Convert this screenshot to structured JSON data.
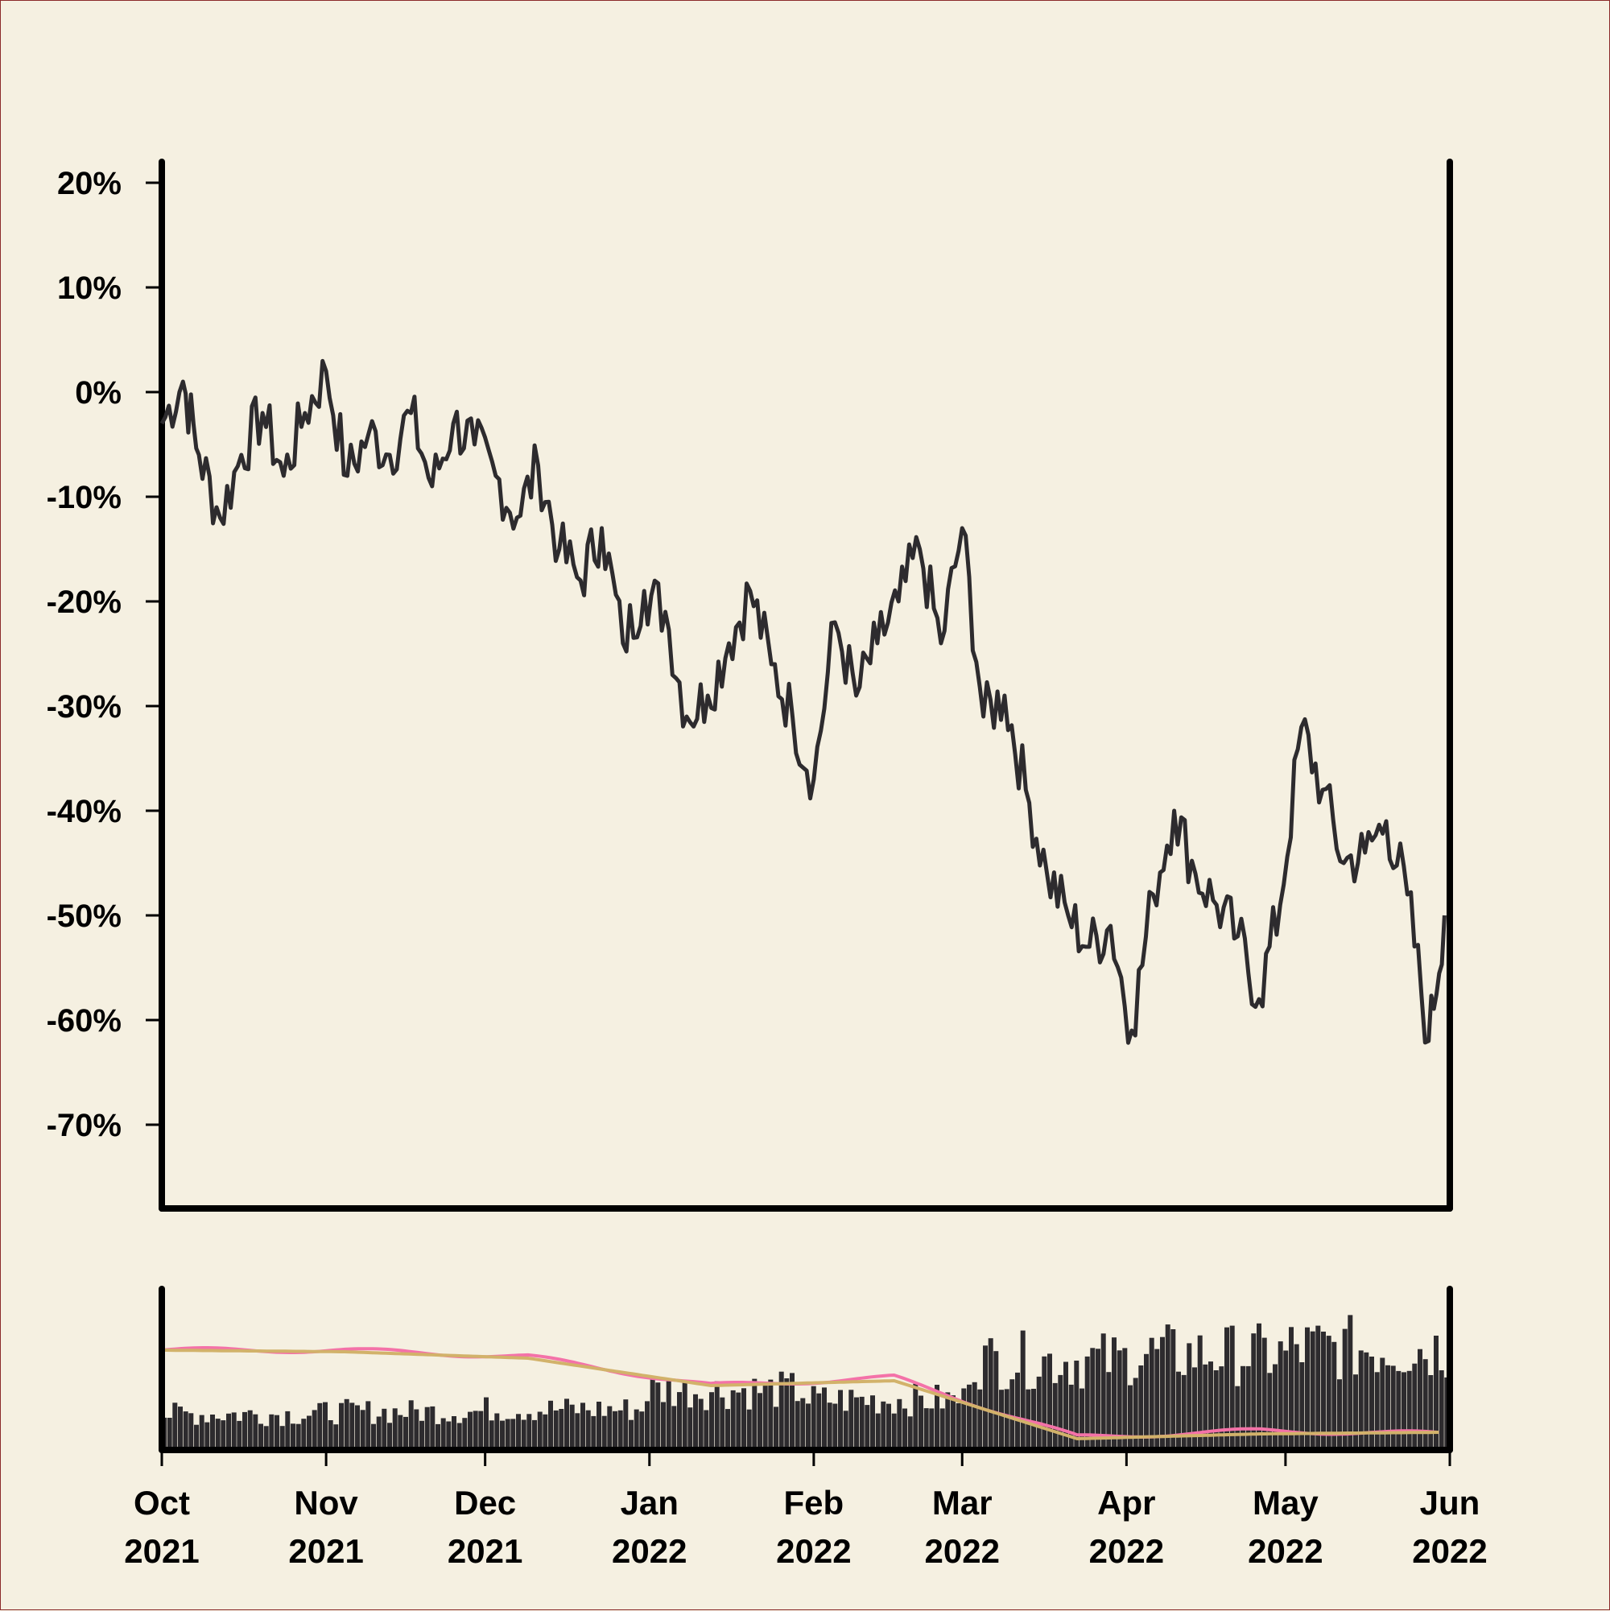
{
  "chart_data": [
    {
      "type": "line",
      "series": [
        {
          "color": "#2d2b2e",
          "x": [
            "2021-10-01",
            "2021-10-05",
            "2021-10-08",
            "2021-10-12",
            "2021-10-16",
            "2021-10-20",
            "2021-10-24",
            "2021-10-28",
            "2021-11-01",
            "2021-11-05",
            "2021-11-09",
            "2021-11-13",
            "2021-11-17",
            "2021-11-21",
            "2021-11-25",
            "2021-11-29",
            "2021-12-03",
            "2021-12-07",
            "2021-12-11",
            "2021-12-15",
            "2021-12-19",
            "2021-12-23",
            "2021-12-27",
            "2021-12-31",
            "2022-01-04",
            "2022-01-08",
            "2022-01-12",
            "2022-01-16",
            "2022-01-20",
            "2022-01-24",
            "2022-01-28",
            "2022-02-01",
            "2022-02-05",
            "2022-02-09",
            "2022-02-13",
            "2022-02-17",
            "2022-02-21",
            "2022-02-25",
            "2022-03-01",
            "2022-03-05",
            "2022-03-09",
            "2022-03-13",
            "2022-03-17",
            "2022-03-21",
            "2022-03-25",
            "2022-03-29",
            "2022-04-02",
            "2022-04-06",
            "2022-04-10",
            "2022-04-14",
            "2022-04-18",
            "2022-04-22",
            "2022-04-26",
            "2022-04-30",
            "2022-05-04",
            "2022-05-08",
            "2022-05-12",
            "2022-05-16",
            "2022-05-20",
            "2022-05-24",
            "2022-05-28",
            "2022-05-31"
          ],
          "y": [
            -3,
            1,
            -6,
            -12,
            -6,
            -2,
            -8,
            -2,
            2,
            -8,
            -4,
            -6,
            -2,
            -9,
            -3,
            -5,
            -8,
            -12,
            -7,
            -15,
            -18,
            -13,
            -24,
            -19,
            -21,
            -31,
            -29,
            -24,
            -19,
            -26,
            -31,
            -37,
            -22,
            -29,
            -24,
            -20,
            -15,
            -24,
            -13,
            -31,
            -29,
            -38,
            -46,
            -50,
            -53,
            -51,
            -61,
            -48,
            -40,
            -46,
            -49,
            -52,
            -58,
            -49,
            -32,
            -38,
            -45,
            -44,
            -41,
            -48,
            -62,
            -50
          ]
        }
      ],
      "xlim": [
        "2021-10-01",
        "2022-06-01"
      ],
      "ylim": [
        -78,
        22
      ],
      "yticks": [
        "20%",
        "10%",
        "0%",
        "-10%",
        "-20%",
        "-30%",
        "-40%",
        "-50%",
        "-60%",
        "-70%"
      ],
      "ytick_values": [
        20,
        10,
        0,
        -10,
        -20,
        -30,
        -40,
        -50,
        -60,
        -70
      ],
      "grid": false
    },
    {
      "type": "bar",
      "x": [
        "2021-10",
        "2021-11",
        "2021-12",
        "2022-01",
        "2022-02",
        "2022-03",
        "2022-04",
        "2022-05"
      ],
      "volume_level": [
        0.3,
        0.32,
        0.34,
        0.5,
        0.42,
        0.75,
        0.8,
        0.85
      ],
      "series": [
        {
          "color": "#f472a8",
          "values": [
            0.62,
            0.62,
            0.58,
            0.4,
            0.45,
            0.08,
            0.12,
            0.1
          ]
        },
        {
          "color": "#d2b26a",
          "values": [
            0.62,
            0.61,
            0.57,
            0.4,
            0.43,
            0.07,
            0.1,
            0.11
          ]
        }
      ],
      "bar_color": "#2d2b2e",
      "xticks": [
        {
          "month": "Oct",
          "year": "2021"
        },
        {
          "month": "Nov",
          "year": "2021"
        },
        {
          "month": "Dec",
          "year": "2021"
        },
        {
          "month": "Jan",
          "year": "2022"
        },
        {
          "month": "Feb",
          "year": "2022"
        },
        {
          "month": "Mar",
          "year": "2022"
        },
        {
          "month": "Apr",
          "year": "2022"
        },
        {
          "month": "May",
          "year": "2022"
        },
        {
          "month": "Jun",
          "year": "2022"
        }
      ]
    }
  ],
  "colors": {
    "background": "#f5f0e1",
    "axis": "#000000",
    "price_line": "#2d2b2e",
    "volume_bars": "#2d2b2e",
    "fast_average": "#f472a8",
    "slow_average": "#d2b26a"
  }
}
